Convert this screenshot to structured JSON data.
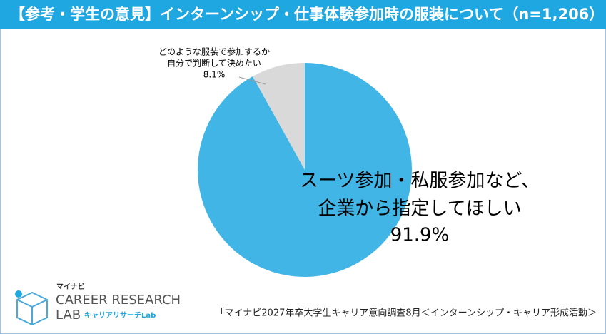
{
  "chart_data": {
    "type": "pie",
    "title": "【参考・学生の意見】インターンシップ・仕事体験参加時の服装について（n=1,206）",
    "categories": [
      [
        "スーツ参加・私服参加など、",
        "企業から指定してほしい"
      ],
      [
        "どのような服装で参加するか",
        "自分で判断して決めたい"
      ]
    ],
    "values": [
      91.9,
      8.1
    ],
    "value_labels": [
      "91.9%",
      "8.1%"
    ],
    "colors": [
      "#41b6e6",
      "#d9d9d9"
    ],
    "source": "「マイナビ2027年卒大学生キャリア意向調査8月＜インターンシップ・キャリア形成活動＞",
    "logo": {
      "brand": "マイナビ",
      "line1": "CAREER RESEARCH",
      "line2": "LAB",
      "sub": "キャリアリサーチLab"
    }
  }
}
